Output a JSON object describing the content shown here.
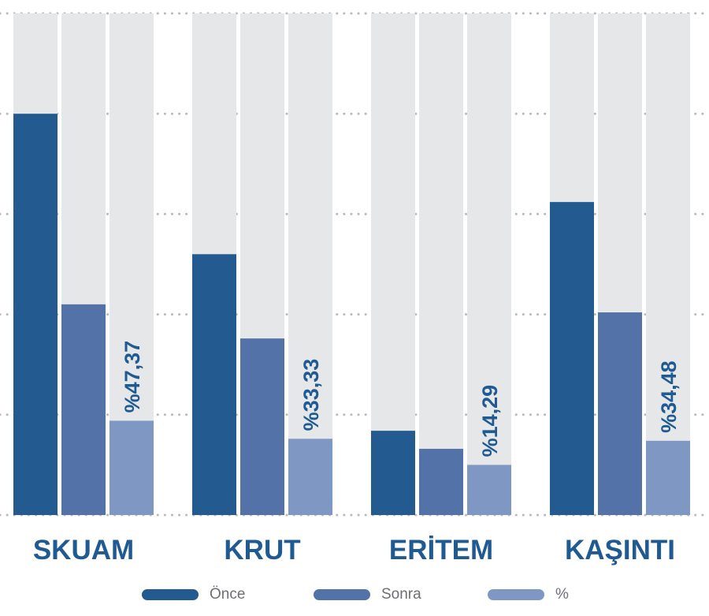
{
  "chart_data": {
    "type": "bar",
    "categories": [
      "SKUAM",
      "KRUT",
      "ERİTEM",
      "KAŞINTI"
    ],
    "series": [
      {
        "name": "Önce",
        "values": [
          20,
          13,
          4.2,
          15.6
        ],
        "color": "#235a8f"
      },
      {
        "name": "Sonra",
        "values": [
          10.5,
          8.8,
          3.3,
          10.1
        ],
        "color": "#5373a8"
      },
      {
        "name": "%",
        "values": [
          4.7,
          3.8,
          2.5,
          3.7
        ],
        "color": "#7f97c3"
      }
    ],
    "percent_labels": [
      "%47,37",
      "%33,33",
      "%14,29",
      "%34,48"
    ],
    "ylim": [
      0,
      25
    ],
    "grid": true,
    "legend_position": "bottom",
    "colors": {
      "background_track": "#e6e7e9",
      "label_text": "#1f5a92",
      "gridline": "#b8babd",
      "legend_text": "#6d6f74"
    }
  }
}
